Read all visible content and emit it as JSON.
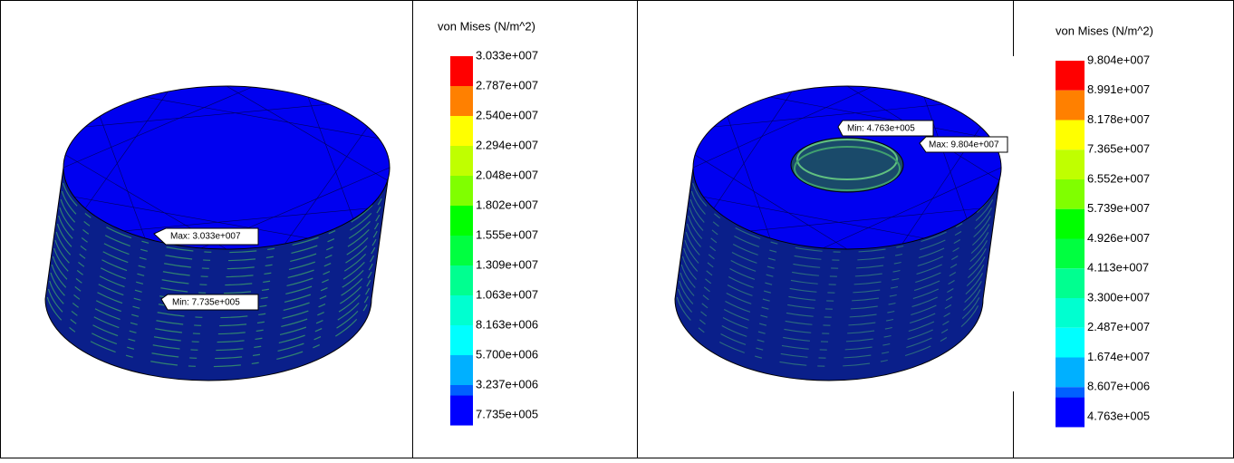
{
  "panels": [
    {
      "legend": {
        "title": "von Mises (N/m^2)",
        "labels": [
          "3.033e+007",
          "2.787e+007",
          "2.540e+007",
          "2.294e+007",
          "2.048e+007",
          "1.802e+007",
          "1.555e+007",
          "1.309e+007",
          "1.063e+007",
          "8.163e+006",
          "5.700e+006",
          "3.237e+006",
          "7.735e+005"
        ]
      },
      "annotations": [
        "Max: 3.033e+007",
        "Min: 7.735e+005"
      ]
    },
    {
      "legend": {
        "title": "von Mises (N/m^2)",
        "labels": [
          "9.804e+007",
          "8.991e+007",
          "8.178e+007",
          "7.365e+007",
          "6.552e+007",
          "5.739e+007",
          "4.926e+007",
          "4.113e+007",
          "3.300e+007",
          "2.487e+007",
          "1.674e+007",
          "8.607e+006",
          "4.763e+005"
        ]
      },
      "annotations": [
        "Min: 4.763e+005",
        "Max: 9.804e+007"
      ]
    }
  ],
  "legend_colors": [
    "#ff0000",
    "#ff8000",
    "#ffff00",
    "#c0ff00",
    "#80ff00",
    "#00ff00",
    "#00ff40",
    "#00ff90",
    "#00ffd0",
    "#00ffff",
    "#00b0ff",
    "#0060ff",
    "#0000ff"
  ]
}
